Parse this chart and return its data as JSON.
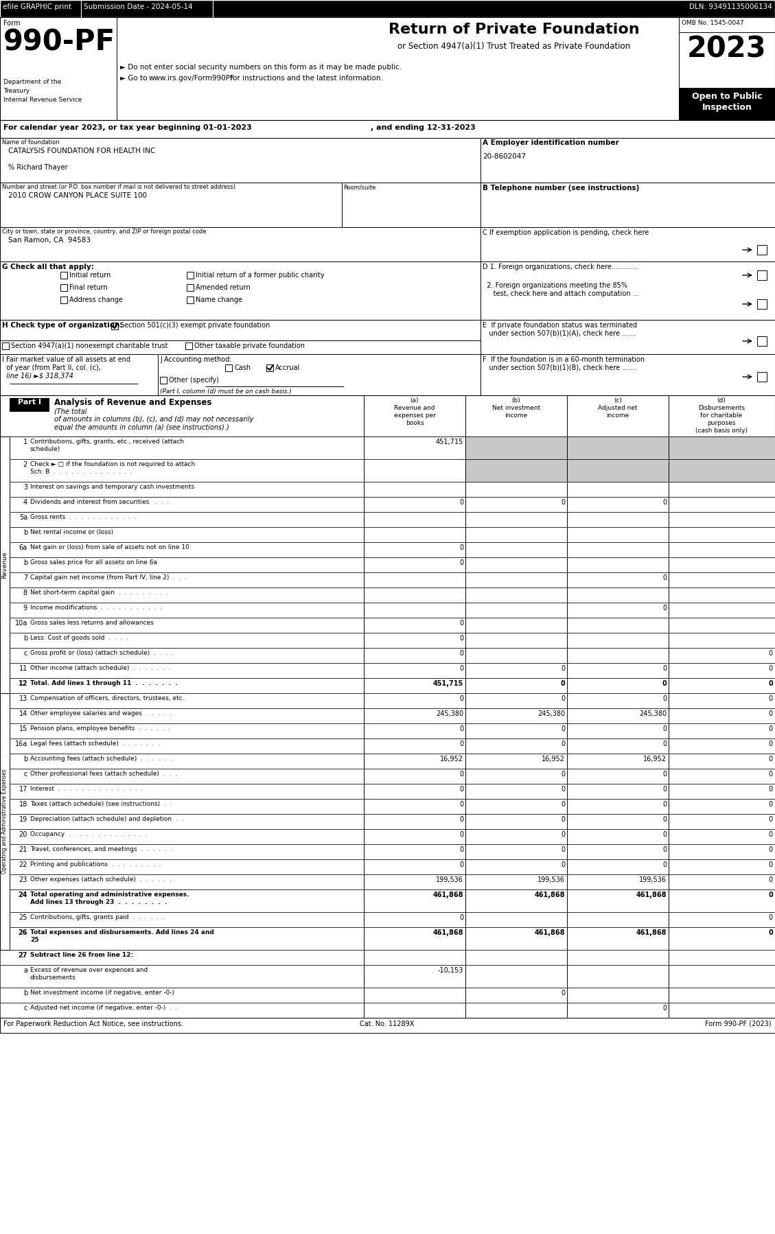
{
  "efile_text": "efile GRAPHIC print",
  "submission_text": "Submission Date - 2024-05-14",
  "dln_text": "DLN: 93491135006134",
  "form_number": "990-PF",
  "dept_lines": [
    "Department of the",
    "Treasury",
    "Internal Revenue Service"
  ],
  "center_title": "Return of Private Foundation",
  "center_sub": "or Section 4947(a)(1) Trust Treated as Private Foundation",
  "bullet1": "► Do not enter social security numbers on this form as it may be made public.",
  "bullet2_pre": "► Go to ",
  "bullet2_url": "www.irs.gov/Form990PF",
  "bullet2_post": " for instructions and the latest information.",
  "omb_text": "OMB No. 1545-0047",
  "year_text": "2023",
  "open_text": "Open to Public",
  "inspection_text": "Inspection",
  "cal_line1": "For calendar year 2023, or tax year beginning 01-01-2023",
  "cal_line2": ", and ending 12-31-2023",
  "name_label": "Name of foundation",
  "name_value": "CATALYSIS FOUNDATION FOR HEALTH INC",
  "care_of": "% Richard Thayer",
  "address_label": "Number and street (or P.O. box number if mail is not delivered to street address)",
  "room_label": "Room/suite",
  "address_value": "2010 CROW CANYON PLACE SUITE 100",
  "city_label": "City or town, state or province, country, and ZIP or foreign postal code",
  "city_value": "San Ramon, CA  94583",
  "ein_label": "A Employer identification number",
  "ein_value": "20-8602047",
  "phone_label": "B Telephone number (see instructions)",
  "c_label": "C If exemption application is pending, check here",
  "d1_label": "D 1. Foreign organizations, check here.............",
  "d2_line1": "  2. Foreign organizations meeting the 85%",
  "d2_line2": "     test, check here and attach computation ...",
  "e_line1": "E  If private foundation status was terminated",
  "e_line2": "   under section 507(b)(1)(A), check here .......",
  "f_line1": "F  If the foundation is in a 60-month termination",
  "f_line2": "   under section 507(b)(1)(B), check here .......",
  "g_label": "G Check all that apply:",
  "h_label": "H Check type of organization:",
  "h501": "Section 501(c)(3) exempt private foundation",
  "h4947": "Section 4947(a)(1) nonexempt charitable trust",
  "hother": "Other taxable private foundation",
  "i_line1": "I Fair market value of all assets at end",
  "i_line2": "  of year (from Part II, col. (c),",
  "i_line3": "  line 16) ►$ 318,374",
  "j_label": "J Accounting method:",
  "j_cash": "Cash",
  "j_accrual": "Accrual",
  "j_other": "Other (specify)",
  "j_note": "(Part I, column (d) must be on cash basis.)",
  "part1_label": "Part I",
  "part1_title": "Analysis of Revenue and Expenses",
  "part1_sub1": "(The total",
  "part1_sub2": "of amounts in columns (b), (c), and (d) may not necessarily",
  "part1_sub3": "equal the amounts in column (a) (see instructions).)",
  "col_a_lines": [
    "(a)",
    "Revenue and",
    "expenses per",
    "books"
  ],
  "col_b_lines": [
    "(b)",
    "Net investment",
    "income"
  ],
  "col_c_lines": [
    "(c)",
    "Adjusted net",
    "income"
  ],
  "col_d_lines": [
    "(d)",
    "Disbursements",
    "for charitable",
    "purposes",
    "(cash basis only)"
  ],
  "revenue_rows": [
    {
      "num": "1",
      "label": "Contributions, gifts, grants, etc., received (attach\nschedule)",
      "a": "451,715",
      "b": "",
      "c": "",
      "d": "",
      "shade_bcd": true,
      "bold": false
    },
    {
      "num": "2",
      "label": "Check ► □ if the foundation is not required to attach\nSch. B  .  .  .  .  .  .  .  .  .  .  .  .  .  .",
      "a": "",
      "b": "",
      "c": "",
      "d": "",
      "shade_bcd": true,
      "bold": false
    },
    {
      "num": "3",
      "label": "Interest on savings and temporary cash investments",
      "a": "",
      "b": "",
      "c": "",
      "d": "",
      "shade_bcd": false,
      "bold": false
    },
    {
      "num": "4",
      "label": "Dividends and interest from securities   .  .  .",
      "a": "0",
      "b": "0",
      "c": "0",
      "d": "",
      "shade_bcd": false,
      "bold": false
    },
    {
      "num": "5a",
      "label": "Gross rents  .  .  .  .  .  .  .  .  .  .  .  .",
      "a": "",
      "b": "",
      "c": "",
      "d": "",
      "shade_bcd": false,
      "bold": false
    },
    {
      "num": "b",
      "label": "Net rental income or (loss)",
      "a": "",
      "b": "",
      "c": "",
      "d": "",
      "shade_bcd": false,
      "bold": false
    },
    {
      "num": "6a",
      "label": "Net gain or (loss) from sale of assets not on line 10",
      "a": "0",
      "b": "",
      "c": "",
      "d": "",
      "shade_bcd": false,
      "bold": false
    },
    {
      "num": "b",
      "label": "Gross sales price for all assets on line 6a",
      "a": "0",
      "b": "",
      "c": "",
      "d": "",
      "shade_bcd": false,
      "bold": false
    },
    {
      "num": "7",
      "label": "Capital gain net income (from Part IV, line 2)  .  .  .",
      "a": "",
      "b": "",
      "c": "0",
      "d": "",
      "shade_bcd": false,
      "bold": false
    },
    {
      "num": "8",
      "label": "Net short-term capital gain  .  .  .  .  .  .  .  .  .",
      "a": "",
      "b": "",
      "c": "",
      "d": "",
      "shade_bcd": false,
      "bold": false
    },
    {
      "num": "9",
      "label": "Income modifications  .  .  .  .  .  .  .  .  .  .  .",
      "a": "",
      "b": "",
      "c": "0",
      "d": "",
      "shade_bcd": false,
      "bold": false
    },
    {
      "num": "10a",
      "label": "Gross sales less returns and allowances",
      "a": "0",
      "b": "",
      "c": "",
      "d": "",
      "shade_bcd": false,
      "bold": false
    },
    {
      "num": "b",
      "label": "Less: Cost of goods sold  .  .  .  .",
      "a": "0",
      "b": "",
      "c": "",
      "d": "",
      "shade_bcd": false,
      "bold": false
    },
    {
      "num": "c",
      "label": "Gross profit or (loss) (attach schedule)  .  .  .  .",
      "a": "0",
      "b": "",
      "c": "",
      "d": "0",
      "shade_bcd": false,
      "bold": false
    },
    {
      "num": "11",
      "label": "Other income (attach schedule)  .  .  .  .  .  .  .",
      "a": "0",
      "b": "0",
      "c": "0",
      "d": "0",
      "shade_bcd": false,
      "bold": false
    },
    {
      "num": "12",
      "label": "Total. Add lines 1 through 11  .  .  .  .  .  .  .",
      "a": "451,715",
      "b": "0",
      "c": "0",
      "d": "0",
      "shade_bcd": false,
      "bold": true
    }
  ],
  "expense_rows": [
    {
      "num": "13",
      "label": "Compensation of officers, directors, trustees, etc.",
      "a": "0",
      "b": "0",
      "c": "0",
      "d": "0",
      "shade_bcd": false,
      "bold": false
    },
    {
      "num": "14",
      "label": "Other employee salaries and wages  .  .  .  .  .",
      "a": "245,380",
      "b": "245,380",
      "c": "245,380",
      "d": "0",
      "shade_bcd": false,
      "bold": false
    },
    {
      "num": "15",
      "label": "Pension plans, employee benefits  .  .  .  .  .  .",
      "a": "0",
      "b": "0",
      "c": "0",
      "d": "0",
      "shade_bcd": false,
      "bold": false
    },
    {
      "num": "16a",
      "label": "Legal fees (attach schedule)  .  .  .  .  .  .  .",
      "a": "0",
      "b": "0",
      "c": "0",
      "d": "0",
      "shade_bcd": false,
      "bold": false
    },
    {
      "num": "b",
      "label": "Accounting fees (attach schedule)  .  .  .  .  .  .",
      "a": "16,952",
      "b": "16,952",
      "c": "16,952",
      "d": "0",
      "shade_bcd": false,
      "bold": false
    },
    {
      "num": "c",
      "label": "Other professional fees (attach schedule)  .  .  .",
      "a": "0",
      "b": "0",
      "c": "0",
      "d": "0",
      "shade_bcd": false,
      "bold": false
    },
    {
      "num": "17",
      "label": "Interest  .  .  .  .  .  .  .  .  .  .  .  .  .  .  .",
      "a": "0",
      "b": "0",
      "c": "0",
      "d": "0",
      "shade_bcd": false,
      "bold": false
    },
    {
      "num": "18",
      "label": "Taxes (attach schedule) (see instructions)  .  .",
      "a": "0",
      "b": "0",
      "c": "0",
      "d": "0",
      "shade_bcd": false,
      "bold": false
    },
    {
      "num": "19",
      "label": "Depreciation (attach schedule) and depletion  .  .",
      "a": "0",
      "b": "0",
      "c": "0",
      "d": "0",
      "shade_bcd": false,
      "bold": false
    },
    {
      "num": "20",
      "label": "Occupancy  .  .  .  .  .  .  .  .  .  .  .  .  .  .",
      "a": "0",
      "b": "0",
      "c": "0",
      "d": "0",
      "shade_bcd": false,
      "bold": false
    },
    {
      "num": "21",
      "label": "Travel, conferences, and meetings  .  .  .  .  .  .",
      "a": "0",
      "b": "0",
      "c": "0",
      "d": "0",
      "shade_bcd": false,
      "bold": false
    },
    {
      "num": "22",
      "label": "Printing and publications  .  .  .  .  .  .  .  .  .",
      "a": "0",
      "b": "0",
      "c": "0",
      "d": "0",
      "shade_bcd": false,
      "bold": false
    },
    {
      "num": "23",
      "label": "Other expenses (attach schedule)  .  .  .  .  .  .",
      "a": "199,536",
      "b": "199,536",
      "c": "199,536",
      "d": "0",
      "shade_bcd": false,
      "bold": false
    },
    {
      "num": "24",
      "label": "Total operating and administrative expenses.\nAdd lines 13 through 23  .  .  .  .  .  .  .  .",
      "a": "461,868",
      "b": "461,868",
      "c": "461,868",
      "d": "0",
      "shade_bcd": false,
      "bold": true
    },
    {
      "num": "25",
      "label": "Contributions, gifts, grants paid  .  .  .  .  .  .",
      "a": "0",
      "b": "",
      "c": "",
      "d": "0",
      "shade_bcd": false,
      "bold": false
    },
    {
      "num": "26",
      "label": "Total expenses and disbursements. Add lines 24 and\n25",
      "a": "461,868",
      "b": "461,868",
      "c": "461,868",
      "d": "0",
      "shade_bcd": false,
      "bold": true
    }
  ],
  "bottom_rows": [
    {
      "num": "27",
      "label": "Subtract line 26 from line 12:",
      "a": "",
      "b": "",
      "c": "",
      "d": "",
      "shade_bcd": false,
      "bold": true
    },
    {
      "num": "a",
      "label": "Excess of revenue over expenses and\ndisbursements",
      "a": "-10,153",
      "b": "",
      "c": "",
      "d": "",
      "shade_bcd": false,
      "bold": false
    },
    {
      "num": "b",
      "label": "Net investment income (if negative, enter -0-)",
      "a": "",
      "b": "0",
      "c": "",
      "d": "",
      "shade_bcd": false,
      "bold": false
    },
    {
      "num": "c",
      "label": "Adjusted net income (if negative, enter -0-)  .  .",
      "a": "",
      "b": "",
      "c": "0",
      "d": "",
      "shade_bcd": false,
      "bold": false
    }
  ],
  "footer_left": "For Paperwork Reduction Act Notice, see instructions.",
  "footer_center": "Cat. No. 11289X",
  "footer_right": "Form 990-PF (2023)"
}
